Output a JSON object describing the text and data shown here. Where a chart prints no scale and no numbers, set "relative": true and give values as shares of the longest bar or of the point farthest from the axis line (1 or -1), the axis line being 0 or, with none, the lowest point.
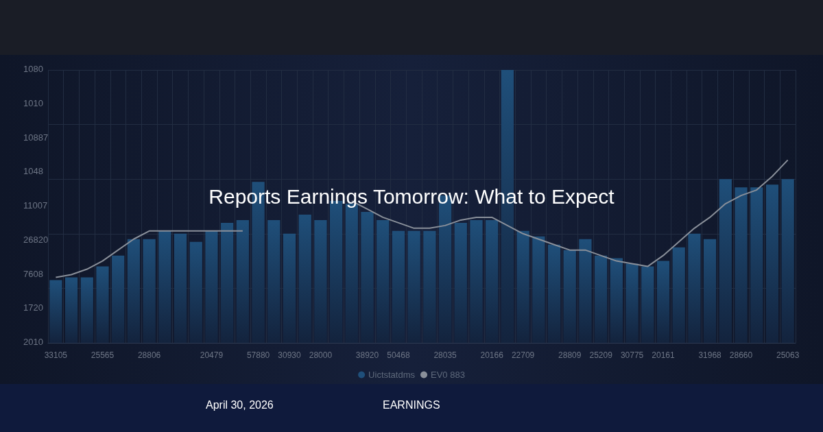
{
  "chart_data": {
    "type": "bar",
    "title": "Reports Earnings Tomorrow: What to Expect",
    "subtitle": "April 30, 2026",
    "annotations": [
      "EARNINGS",
      "1080",
      "1010",
      "10887",
      "1048",
      "11007",
      "26820",
      "7608",
      "1720",
      "2010"
    ],
    "relative": true,
    "categories": [
      "33105",
      null,
      null,
      "25565",
      null,
      null,
      "28806",
      null,
      null,
      null,
      "20479",
      null,
      null,
      "57880",
      null,
      "30930",
      null,
      "28000",
      null,
      null,
      "38920",
      null,
      "50468",
      null,
      null,
      "28035",
      null,
      null,
      "20166",
      null,
      "22709",
      null,
      null,
      "28809",
      null,
      "25209",
      null,
      "30775",
      null,
      "20161",
      null,
      null,
      "31968",
      null,
      "28660",
      null,
      null,
      "25063"
    ],
    "series": [
      {
        "name": "Uictstatdms",
        "color": "#1f4f7a",
        "values": [
          0.23,
          0.24,
          0.24,
          0.28,
          0.32,
          0.38,
          0.38,
          0.41,
          0.4,
          0.37,
          0.41,
          0.44,
          0.45,
          0.59,
          0.45,
          0.4,
          0.47,
          0.45,
          0.52,
          0.51,
          0.48,
          0.45,
          0.41,
          0.41,
          0.41,
          0.54,
          0.44,
          0.45,
          0.45,
          1,
          0.41,
          0.39,
          0.36,
          0.34,
          0.38,
          0.32,
          0.31,
          0.29,
          0.28,
          0.3,
          0.35,
          0.4,
          0.38,
          0.6,
          0.57,
          0.57,
          0.58,
          0.6
        ]
      },
      {
        "name": "EV0 883",
        "type": "line",
        "color": "#8a909a",
        "values": [
          0.24,
          0.25,
          0.27,
          0.3,
          0.34,
          0.38,
          0.41,
          0.41,
          0.41,
          0.41,
          0.41,
          0.41,
          0.41,
          null,
          null,
          null,
          null,
          null,
          null,
          0.52,
          0.49,
          0.46,
          0.44,
          0.42,
          0.42,
          0.43,
          0.45,
          0.46,
          0.46,
          0.43,
          0.4,
          0.38,
          0.36,
          0.34,
          0.34,
          0.32,
          0.3,
          0.29,
          0.28,
          0.32,
          0.37,
          0.42,
          0.46,
          0.51,
          0.54,
          0.56,
          0.61,
          0.67
        ]
      }
    ],
    "grid": true,
    "legend": "bottom",
    "marker": "none",
    "line_style": "solid"
  }
}
